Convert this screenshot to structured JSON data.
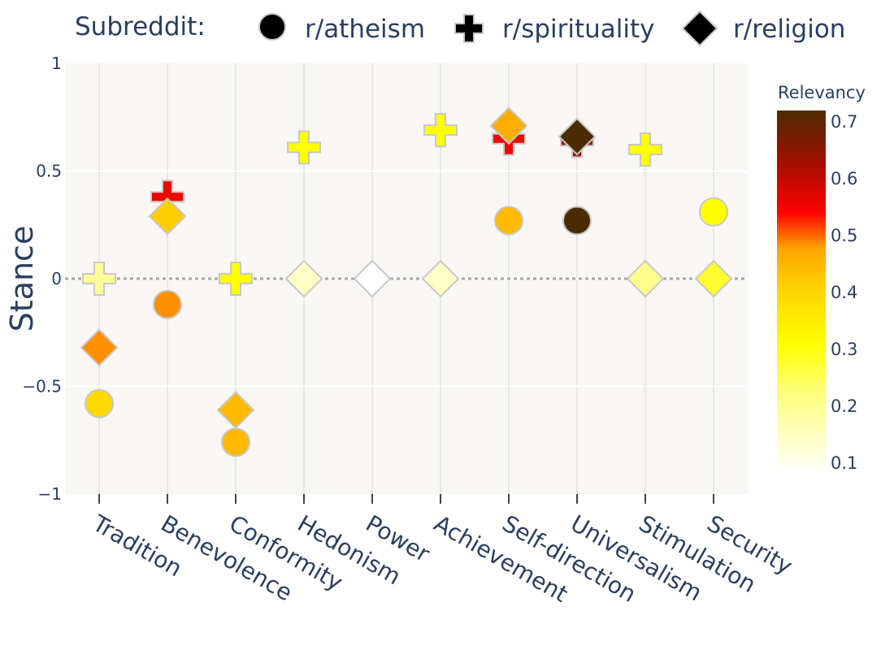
{
  "chart_data": {
    "type": "scatter",
    "title": "",
    "xlabel": "",
    "ylabel": "Stance",
    "ylim": [
      -1,
      1
    ],
    "y_ticks": [
      "1",
      "0.5",
      "0",
      "−0.5",
      "−1"
    ],
    "y_tick_values": [
      1,
      0.5,
      0,
      -0.5,
      -1
    ],
    "reference_line": {
      "y": 0,
      "style": "dotted"
    },
    "categories": [
      "Tradition",
      "Benevolence",
      "Conformity",
      "Hedonism",
      "Power",
      "Achievement",
      "Self-direction",
      "Universalism",
      "Stimulation",
      "Security"
    ],
    "legend": {
      "title": "Subreddit:",
      "position": "top",
      "entries": [
        {
          "name": "r/atheism",
          "symbol": "circle"
        },
        {
          "name": "r/spirituality",
          "symbol": "cross"
        },
        {
          "name": "r/religion",
          "symbol": "diamond"
        }
      ]
    },
    "colorbar": {
      "title": "Relevancy",
      "range": [
        0.08,
        0.72
      ],
      "ticks": [
        0.1,
        0.2,
        0.3,
        0.4,
        0.5,
        0.6,
        0.7
      ],
      "tick_labels": [
        "0.1",
        "0.2",
        "0.3",
        "0.4",
        "0.5",
        "0.6",
        "0.7"
      ],
      "colorscale": "hot (white-yellow-orange-red-brown)"
    },
    "series": [
      {
        "name": "r/atheism",
        "symbol": "circle",
        "points": [
          {
            "x": "Tradition",
            "y": -0.58,
            "relevancy": 0.28
          },
          {
            "x": "Benevolence",
            "y": -0.12,
            "relevancy": 0.38
          },
          {
            "x": "Conformity",
            "y": -0.76,
            "relevancy": 0.33
          },
          {
            "x": "Self-direction",
            "y": 0.27,
            "relevancy": 0.33
          },
          {
            "x": "Universalism",
            "y": 0.27,
            "relevancy": 0.72
          },
          {
            "x": "Security",
            "y": 0.31,
            "relevancy": 0.22
          }
        ]
      },
      {
        "name": "r/spirituality",
        "symbol": "cross",
        "points": [
          {
            "x": "Tradition",
            "y": 0.0,
            "relevancy": 0.15
          },
          {
            "x": "Benevolence",
            "y": 0.38,
            "relevancy": 0.5
          },
          {
            "x": "Conformity",
            "y": 0.0,
            "relevancy": 0.22
          },
          {
            "x": "Hedonism",
            "y": 0.61,
            "relevancy": 0.22
          },
          {
            "x": "Achievement",
            "y": 0.69,
            "relevancy": 0.22
          },
          {
            "x": "Self-direction",
            "y": 0.65,
            "relevancy": 0.5
          },
          {
            "x": "Universalism",
            "y": 0.64,
            "relevancy": 0.6
          },
          {
            "x": "Stimulation",
            "y": 0.6,
            "relevancy": 0.22
          }
        ]
      },
      {
        "name": "r/religion",
        "symbol": "diamond",
        "points": [
          {
            "x": "Tradition",
            "y": -0.32,
            "relevancy": 0.38
          },
          {
            "x": "Benevolence",
            "y": 0.29,
            "relevancy": 0.3
          },
          {
            "x": "Conformity",
            "y": -0.61,
            "relevancy": 0.33
          },
          {
            "x": "Hedonism",
            "y": 0.0,
            "relevancy": 0.12
          },
          {
            "x": "Power",
            "y": 0.0,
            "relevancy": 0.08
          },
          {
            "x": "Achievement",
            "y": 0.0,
            "relevancy": 0.12
          },
          {
            "x": "Self-direction",
            "y": 0.71,
            "relevancy": 0.35
          },
          {
            "x": "Universalism",
            "y": 0.66,
            "relevancy": 0.72
          },
          {
            "x": "Stimulation",
            "y": 0.0,
            "relevancy": 0.16
          },
          {
            "x": "Security",
            "y": 0.0,
            "relevancy": 0.2
          }
        ]
      }
    ]
  }
}
